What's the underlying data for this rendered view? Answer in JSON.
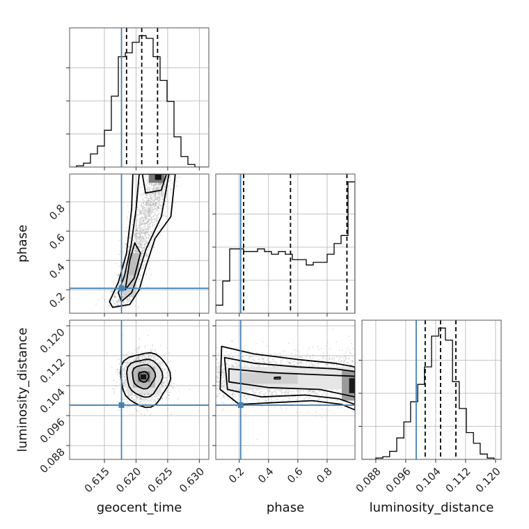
{
  "chart_data": {
    "type": "corner",
    "parameters": [
      "geocent_time",
      "phase",
      "luminosity_distance"
    ],
    "truth": {
      "geocent_time": 0.6177,
      "phase": 0.21,
      "luminosity_distance": 0.0988
    },
    "truth_color": "#4682b4",
    "grid": true,
    "axes": {
      "geocent_time": {
        "range": [
          0.6095,
          0.6315
        ],
        "ticks": [
          0.615,
          0.62,
          0.625,
          0.63
        ],
        "tick_labels": [
          "0.615",
          "0.620",
          "0.625",
          "0.630"
        ]
      },
      "phase": {
        "range": [
          0.04,
          0.99
        ],
        "ticks": [
          0.2,
          0.4,
          0.6,
          0.8
        ],
        "tick_labels": [
          "0.2",
          "0.4",
          "0.6",
          "0.8"
        ]
      },
      "luminosity_distance": {
        "range": [
          0.0843,
          0.1215
        ],
        "ticks": [
          0.088,
          0.096,
          0.104,
          0.112,
          0.12
        ],
        "tick_labels": [
          "0.088",
          "0.096",
          "0.104",
          "0.112",
          "0.120"
        ]
      }
    },
    "marginals": {
      "geocent_time": {
        "bin_edges": [
          0.6095,
          0.6106,
          0.6117,
          0.6128,
          0.6139,
          0.615,
          0.6161,
          0.6172,
          0.6183,
          0.6194,
          0.6205,
          0.6216,
          0.6227,
          0.6238,
          0.6249,
          0.626,
          0.6271,
          0.6282,
          0.6293,
          0.6304,
          0.6315
        ],
        "counts": [
          0,
          1,
          3,
          10,
          16,
          28,
          54,
          84,
          87,
          95,
          100,
          98,
          84,
          66,
          50,
          23,
          8,
          2,
          0,
          0
        ],
        "quantiles": [
          0.6185,
          0.6209,
          0.6234
        ]
      },
      "phase": {
        "bin_edges": [
          0.04,
          0.0875,
          0.135,
          0.1825,
          0.23,
          0.2775,
          0.325,
          0.3725,
          0.42,
          0.4675,
          0.515,
          0.5625,
          0.61,
          0.6575,
          0.705,
          0.7525,
          0.8,
          0.8475,
          0.895,
          0.9425,
          0.99
        ],
        "counts": [
          3,
          12,
          24,
          24,
          23,
          23,
          24,
          23,
          22,
          23,
          22,
          20,
          20,
          18,
          19,
          19,
          22,
          26,
          29,
          49
        ],
        "quantiles": [
          0.23,
          0.55,
          0.935
        ]
      },
      "luminosity_distance": {
        "bin_edges": [
          0.0843,
          0.0862,
          0.088,
          0.0899,
          0.0917,
          0.0936,
          0.0955,
          0.0973,
          0.0992,
          0.101,
          0.1029,
          0.1048,
          0.1066,
          0.1085,
          0.1103,
          0.1122,
          0.1141,
          0.1159,
          0.1178,
          0.1196,
          0.1215
        ],
        "counts": [
          0,
          0,
          1,
          2,
          6,
          16,
          28,
          43,
          56,
          69,
          92,
          98,
          89,
          58,
          38,
          20,
          12,
          4,
          1,
          0
        ],
        "quantiles": [
          0.1012,
          0.1053,
          0.1094
        ]
      }
    },
    "joint": [
      {
        "x": "geocent_time",
        "y": "phase",
        "description": "correlated ridge"
      },
      {
        "x": "geocent_time",
        "y": "luminosity_distance",
        "description": "compact blob"
      },
      {
        "x": "phase",
        "y": "luminosity_distance",
        "description": "elongated band"
      }
    ]
  }
}
